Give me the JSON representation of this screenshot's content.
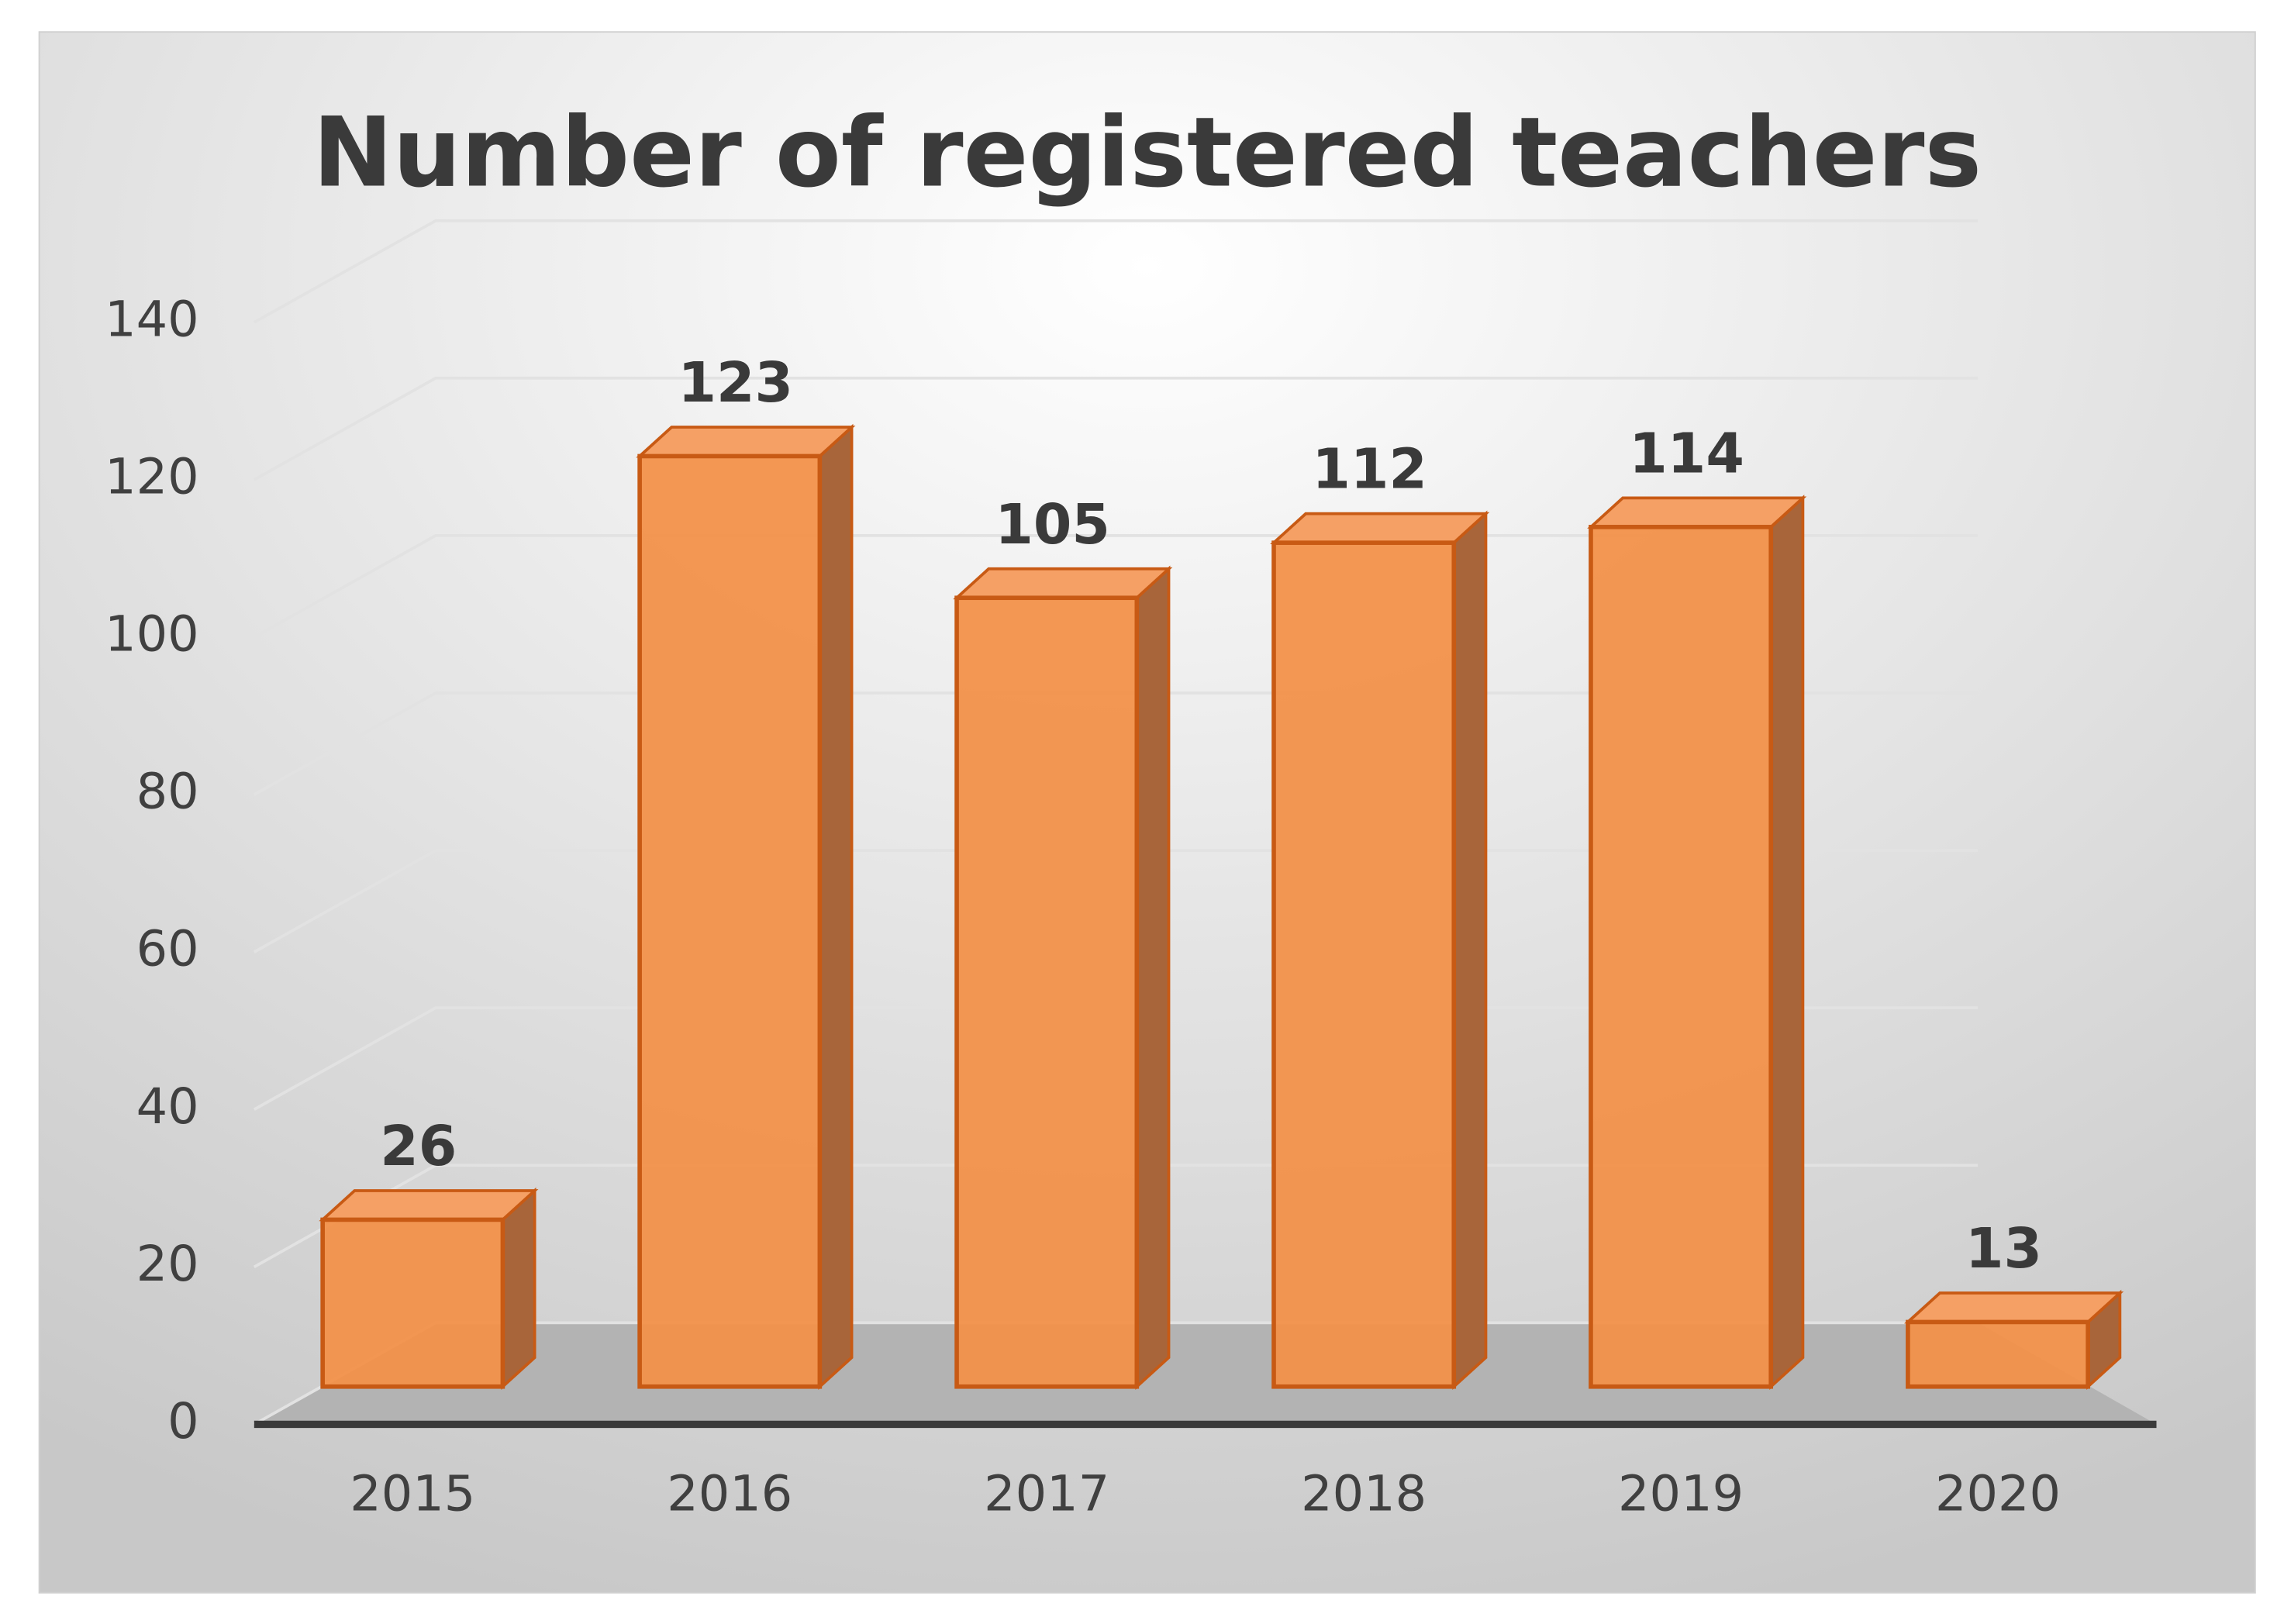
{
  "chart_data": {
    "type": "bar",
    "title": "Number of registered teachers",
    "categories": [
      "2015",
      "2016",
      "2017",
      "2018",
      "2019",
      "2020"
    ],
    "values": [
      26,
      123,
      105,
      112,
      114,
      13
    ],
    "color": "#f2914a",
    "ylim": [
      0,
      140
    ],
    "yticks": [
      0,
      20,
      40,
      60,
      80,
      100,
      120,
      140
    ],
    "grid": true
  }
}
